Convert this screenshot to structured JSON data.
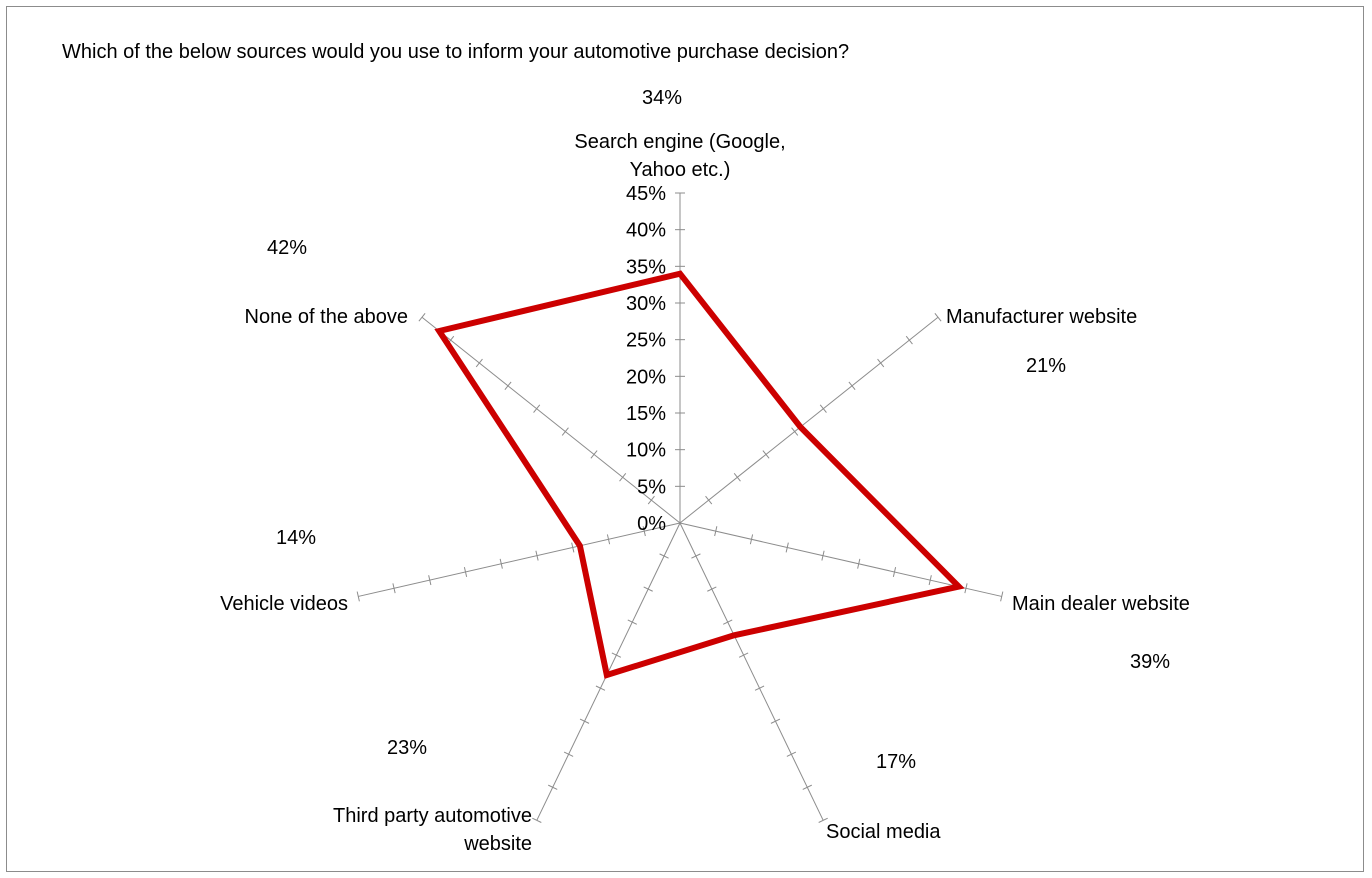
{
  "chart_data": {
    "type": "radar",
    "title": "Which of the below sources would you use to inform your automotive purchase decision?",
    "categories": [
      "Search engine (Google, Yahoo etc.)",
      "Manufacturer website",
      "Main dealer website",
      "Social media",
      "Third party automotive website",
      "Vehicle videos",
      "None of the above"
    ],
    "category_label_lines": [
      [
        "Search engine (Google,",
        "Yahoo etc.)"
      ],
      [
        "Manufacturer website"
      ],
      [
        "Main dealer website"
      ],
      [
        "Social media"
      ],
      [
        "Third party automotive",
        "website"
      ],
      [
        "Vehicle videos"
      ],
      [
        "None of the above"
      ]
    ],
    "series": [
      {
        "values": [
          34,
          21,
          39,
          17,
          23,
          14,
          42
        ],
        "color": "#cc0000"
      }
    ],
    "data_labels": [
      "34%",
      "21%",
      "39%",
      "17%",
      "23%",
      "14%",
      "42%"
    ],
    "ylim": [
      0,
      45
    ],
    "tick_labels": [
      "0%",
      "5%",
      "10%",
      "15%",
      "20%",
      "25%",
      "30%",
      "35%",
      "40%",
      "45%"
    ],
    "grid": false,
    "legend": "none"
  }
}
